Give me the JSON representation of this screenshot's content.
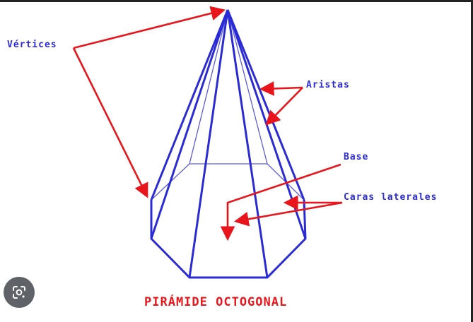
{
  "labels": {
    "vertices": "Vértices",
    "edges": "Aristas",
    "base": "Base",
    "lateral_faces": "Caras laterales"
  },
  "title": "PIRÁMIDE OCTOGONAL",
  "colors": {
    "pyramid": "#2b2bd6",
    "arrows": "#e8161c",
    "label_text": "#2b2bd6",
    "title_text": "#e8161c",
    "lens_button": "#5f6368"
  },
  "overlay": {
    "icon": "google-lens-icon"
  }
}
